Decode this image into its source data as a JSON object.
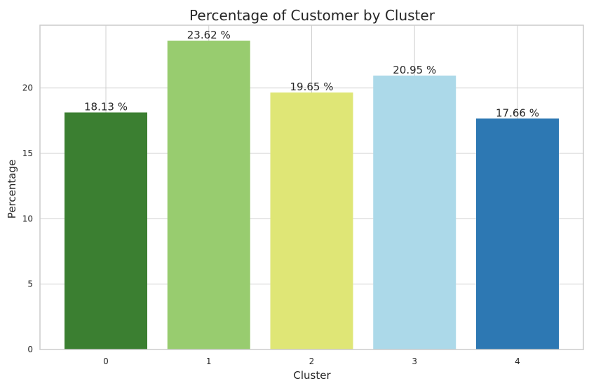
{
  "chart_data": {
    "type": "bar",
    "title": "Percentage of Customer by Cluster",
    "xlabel": "Cluster",
    "ylabel": "Percentage",
    "categories": [
      "0",
      "1",
      "2",
      "3",
      "4"
    ],
    "values": [
      18.13,
      23.62,
      19.65,
      20.95,
      17.66
    ],
    "data_labels": [
      "18.13 %",
      "23.62 %",
      "19.65 %",
      "20.95 %",
      "17.66 %"
    ],
    "colors": [
      "#3b7f31",
      "#98cc6f",
      "#dfe676",
      "#acd9e9",
      "#2d78b3"
    ],
    "ylim": [
      0,
      24.8
    ],
    "yticks": [
      0,
      5,
      10,
      15,
      20
    ],
    "ytick_labels": [
      "0",
      "5",
      "10",
      "15",
      "20"
    ],
    "grid": true,
    "legend": "none"
  }
}
